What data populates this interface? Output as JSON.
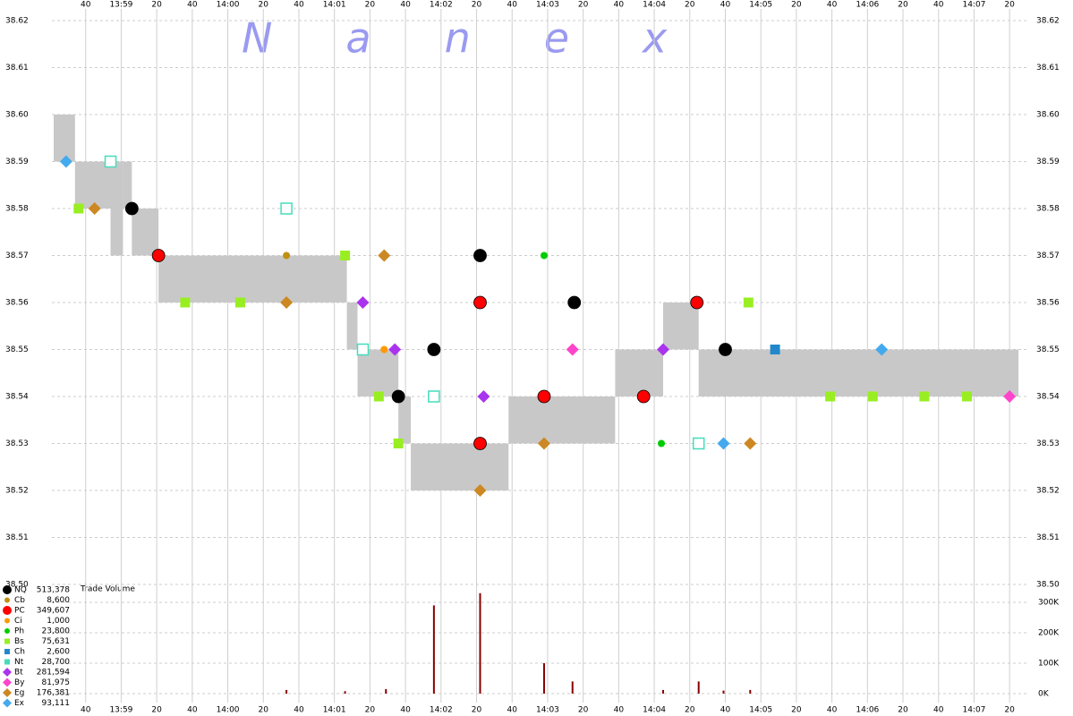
{
  "chart_data": {
    "type": "scatter",
    "watermark": "Nanex",
    "volume_title": "Trade Volume",
    "xlim": [
      50301,
      50851
    ],
    "xticks": [
      {
        "value": 50320,
        "label": "40"
      },
      {
        "value": 50340,
        "label": "13:59"
      },
      {
        "value": 50360,
        "label": "20"
      },
      {
        "value": 50380,
        "label": "40"
      },
      {
        "value": 50400,
        "label": "14:00"
      },
      {
        "value": 50420,
        "label": "20"
      },
      {
        "value": 50440,
        "label": "40"
      },
      {
        "value": 50460,
        "label": "14:01"
      },
      {
        "value": 50480,
        "label": "20"
      },
      {
        "value": 50500,
        "label": "40"
      },
      {
        "value": 50520,
        "label": "14:02"
      },
      {
        "value": 50540,
        "label": "20"
      },
      {
        "value": 50560,
        "label": "40"
      },
      {
        "value": 50580,
        "label": "14:03"
      },
      {
        "value": 50600,
        "label": "20"
      },
      {
        "value": 50620,
        "label": "40"
      },
      {
        "value": 50640,
        "label": "14:04"
      },
      {
        "value": 50660,
        "label": "20"
      },
      {
        "value": 50680,
        "label": "40"
      },
      {
        "value": 50700,
        "label": "14:05"
      },
      {
        "value": 50720,
        "label": "20"
      },
      {
        "value": 50740,
        "label": "40"
      },
      {
        "value": 50760,
        "label": "14:06"
      },
      {
        "value": 50780,
        "label": "20"
      },
      {
        "value": 50800,
        "label": "40"
      },
      {
        "value": 50820,
        "label": "14:07"
      },
      {
        "value": 50840,
        "label": "20"
      }
    ],
    "ylim": [
      38.5,
      38.62
    ],
    "yticks": [
      {
        "value": 38.5,
        "label": "38.50"
      },
      38.51,
      38.52,
      38.53,
      38.54,
      38.55,
      38.56,
      38.57,
      38.58,
      38.59,
      {
        "value": 38.6,
        "label": "38.60"
      },
      38.61,
      38.62
    ],
    "grid": true,
    "nbbo": {
      "color": "#c8c8c8",
      "x": [
        50302,
        50314,
        50334,
        50341,
        50346,
        50361,
        50467,
        50473,
        50496,
        50503,
        50558,
        50618,
        50645,
        50665
      ],
      "x_end": [
        50314,
        50334,
        50341,
        50346,
        50361,
        50467,
        50473,
        50496,
        50503,
        50558,
        50618,
        50645,
        50665,
        50845
      ],
      "bid": [
        38.59,
        38.58,
        38.57,
        38.58,
        38.57,
        38.56,
        38.55,
        38.54,
        38.53,
        38.52,
        38.53,
        38.54,
        38.55,
        38.54
      ],
      "ask": [
        38.6,
        38.59,
        38.59,
        38.59,
        38.58,
        38.57,
        38.56,
        38.55,
        38.54,
        38.53,
        38.54,
        38.55,
        38.56,
        38.55
      ]
    },
    "series": [
      {
        "name": "NQ",
        "total": "513,378",
        "color": "#000000",
        "marker": "circle-big",
        "x": [
          50346,
          50496,
          50542,
          50595,
          50680,
          50516
        ],
        "values": [
          38.58,
          38.54,
          38.57,
          38.56,
          38.55,
          38.55
        ]
      },
      {
        "name": "Cb",
        "total": "8,600",
        "color": "#c09010",
        "marker": "circle-small",
        "x": [
          50433
        ],
        "values": [
          38.57
        ]
      },
      {
        "name": "PC",
        "total": "349,607",
        "color": "#ff0000",
        "marker": "circle-big",
        "x": [
          50361,
          50542,
          50542,
          50578,
          50664,
          50634
        ],
        "values": [
          38.57,
          38.56,
          38.53,
          38.54,
          38.56,
          38.54
        ]
      },
      {
        "name": "Ci",
        "total": "1,000",
        "color": "#ff9900",
        "marker": "circle-small",
        "x": [
          50488
        ],
        "values": [
          38.55
        ]
      },
      {
        "name": "Ph",
        "total": "23,800",
        "color": "#00cc00",
        "marker": "circle-small",
        "x": [
          50578,
          50644
        ],
        "values": [
          38.57,
          38.53
        ]
      },
      {
        "name": "Bs",
        "total": "75,631",
        "color": "#99ee22",
        "marker": "square",
        "x": [
          50316,
          50376,
          50407,
          50466,
          50485,
          50496,
          50693,
          50739,
          50763,
          50792,
          50816
        ],
        "values": [
          38.58,
          38.56,
          38.56,
          38.57,
          38.54,
          38.53,
          38.56,
          38.54,
          38.54,
          38.54,
          38.54
        ]
      },
      {
        "name": "Ch",
        "total": "2,600",
        "color": "#2288cc",
        "marker": "square",
        "x": [
          50708
        ],
        "values": [
          38.55
        ]
      },
      {
        "name": "Nt",
        "total": "28,700",
        "color": "#44ddbb",
        "marker": "square-open",
        "x": [
          50334,
          50433,
          50665,
          50476,
          50516
        ],
        "values": [
          38.59,
          38.58,
          38.53,
          38.55,
          38.54
        ]
      },
      {
        "name": "Bt",
        "total": "281,594",
        "color": "#aa33ee",
        "marker": "diamond",
        "x": [
          50476,
          50494,
          50544,
          50645
        ],
        "values": [
          38.56,
          38.55,
          38.54,
          38.55
        ]
      },
      {
        "name": "By",
        "total": "81,975",
        "color": "#ff44cc",
        "marker": "diamond",
        "x": [
          50840,
          50594
        ],
        "values": [
          38.54,
          38.55
        ]
      },
      {
        "name": "Eg",
        "total": "176,381",
        "color": "#cc8822",
        "marker": "diamond",
        "x": [
          50325,
          50488,
          50542,
          50578,
          50694,
          50433
        ],
        "values": [
          38.58,
          38.57,
          38.52,
          38.53,
          38.53,
          38.56
        ]
      },
      {
        "name": "Ex",
        "total": "93,111",
        "color": "#44aaee",
        "marker": "diamond",
        "x": [
          50309,
          50768,
          50679
        ],
        "values": [
          38.59,
          38.55,
          38.53
        ]
      }
    ],
    "volume": {
      "color": "#880000",
      "ylim": [
        0,
        350000
      ],
      "yticks": [
        {
          "value": 0,
          "label": "0K"
        },
        {
          "value": 100000,
          "label": "100K"
        },
        {
          "value": 200000,
          "label": "200K"
        },
        {
          "value": 300000,
          "label": "300K"
        }
      ],
      "x": [
        50516,
        50542,
        50578,
        50594,
        50665,
        50433,
        50489,
        50466,
        50645,
        50679,
        50694
      ],
      "values": [
        290000,
        330000,
        100000,
        40000,
        40000,
        12000,
        15000,
        8000,
        12000,
        10000,
        12000
      ]
    }
  }
}
